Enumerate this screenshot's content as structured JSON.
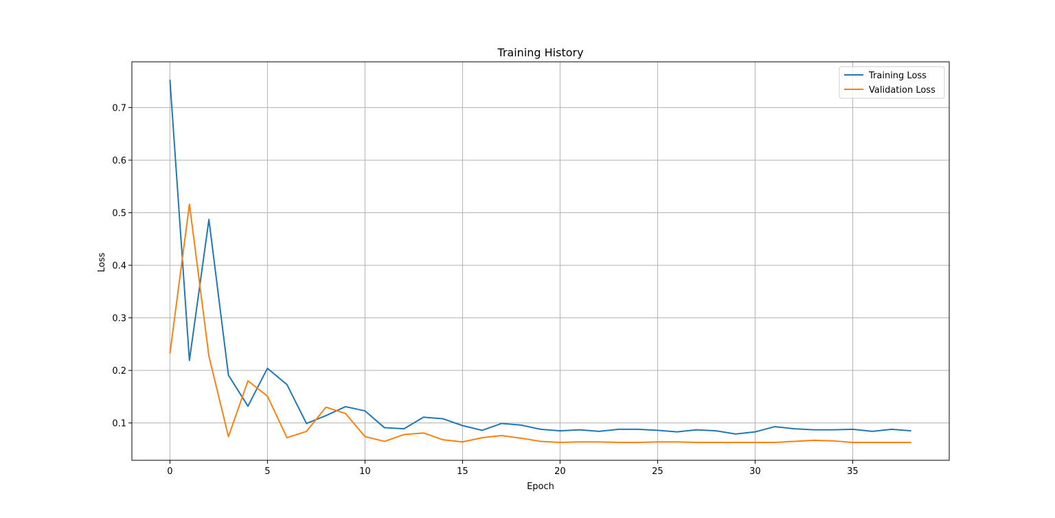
{
  "chart_data": {
    "type": "line",
    "title": "Training History",
    "xlabel": "Epoch",
    "ylabel": "Loss",
    "xlim": [
      -1.95,
      39.95
    ],
    "ylim": [
      0.029,
      0.787
    ],
    "xticks": [
      0,
      5,
      10,
      15,
      20,
      25,
      30,
      35
    ],
    "yticks": [
      0.1,
      0.2,
      0.3,
      0.4,
      0.5,
      0.6,
      0.7
    ],
    "grid": true,
    "legend_position": "top-right",
    "x": [
      0,
      1,
      2,
      3,
      4,
      5,
      6,
      7,
      8,
      9,
      10,
      11,
      12,
      13,
      14,
      15,
      16,
      17,
      18,
      19,
      20,
      21,
      22,
      23,
      24,
      25,
      26,
      27,
      28,
      29,
      30,
      31,
      32,
      33,
      34,
      35,
      36,
      37,
      38
    ],
    "series": [
      {
        "name": "Training Loss",
        "color": "#1f77b4",
        "values": [
          0.753,
          0.219,
          0.487,
          0.191,
          0.132,
          0.204,
          0.173,
          0.099,
          0.114,
          0.131,
          0.123,
          0.091,
          0.089,
          0.111,
          0.108,
          0.095,
          0.086,
          0.099,
          0.096,
          0.088,
          0.085,
          0.087,
          0.084,
          0.088,
          0.088,
          0.086,
          0.083,
          0.087,
          0.085,
          0.079,
          0.083,
          0.093,
          0.089,
          0.087,
          0.087,
          0.088,
          0.084,
          0.088,
          0.085
        ]
      },
      {
        "name": "Validation Loss",
        "color": "#ff7f0e",
        "values": [
          0.232,
          0.516,
          0.227,
          0.074,
          0.18,
          0.151,
          0.072,
          0.084,
          0.13,
          0.118,
          0.074,
          0.065,
          0.078,
          0.081,
          0.068,
          0.064,
          0.072,
          0.076,
          0.071,
          0.065,
          0.063,
          0.064,
          0.064,
          0.063,
          0.063,
          0.064,
          0.064,
          0.063,
          0.063,
          0.063,
          0.063,
          0.063,
          0.065,
          0.067,
          0.066,
          0.063,
          0.063,
          0.063,
          0.063
        ]
      }
    ]
  }
}
